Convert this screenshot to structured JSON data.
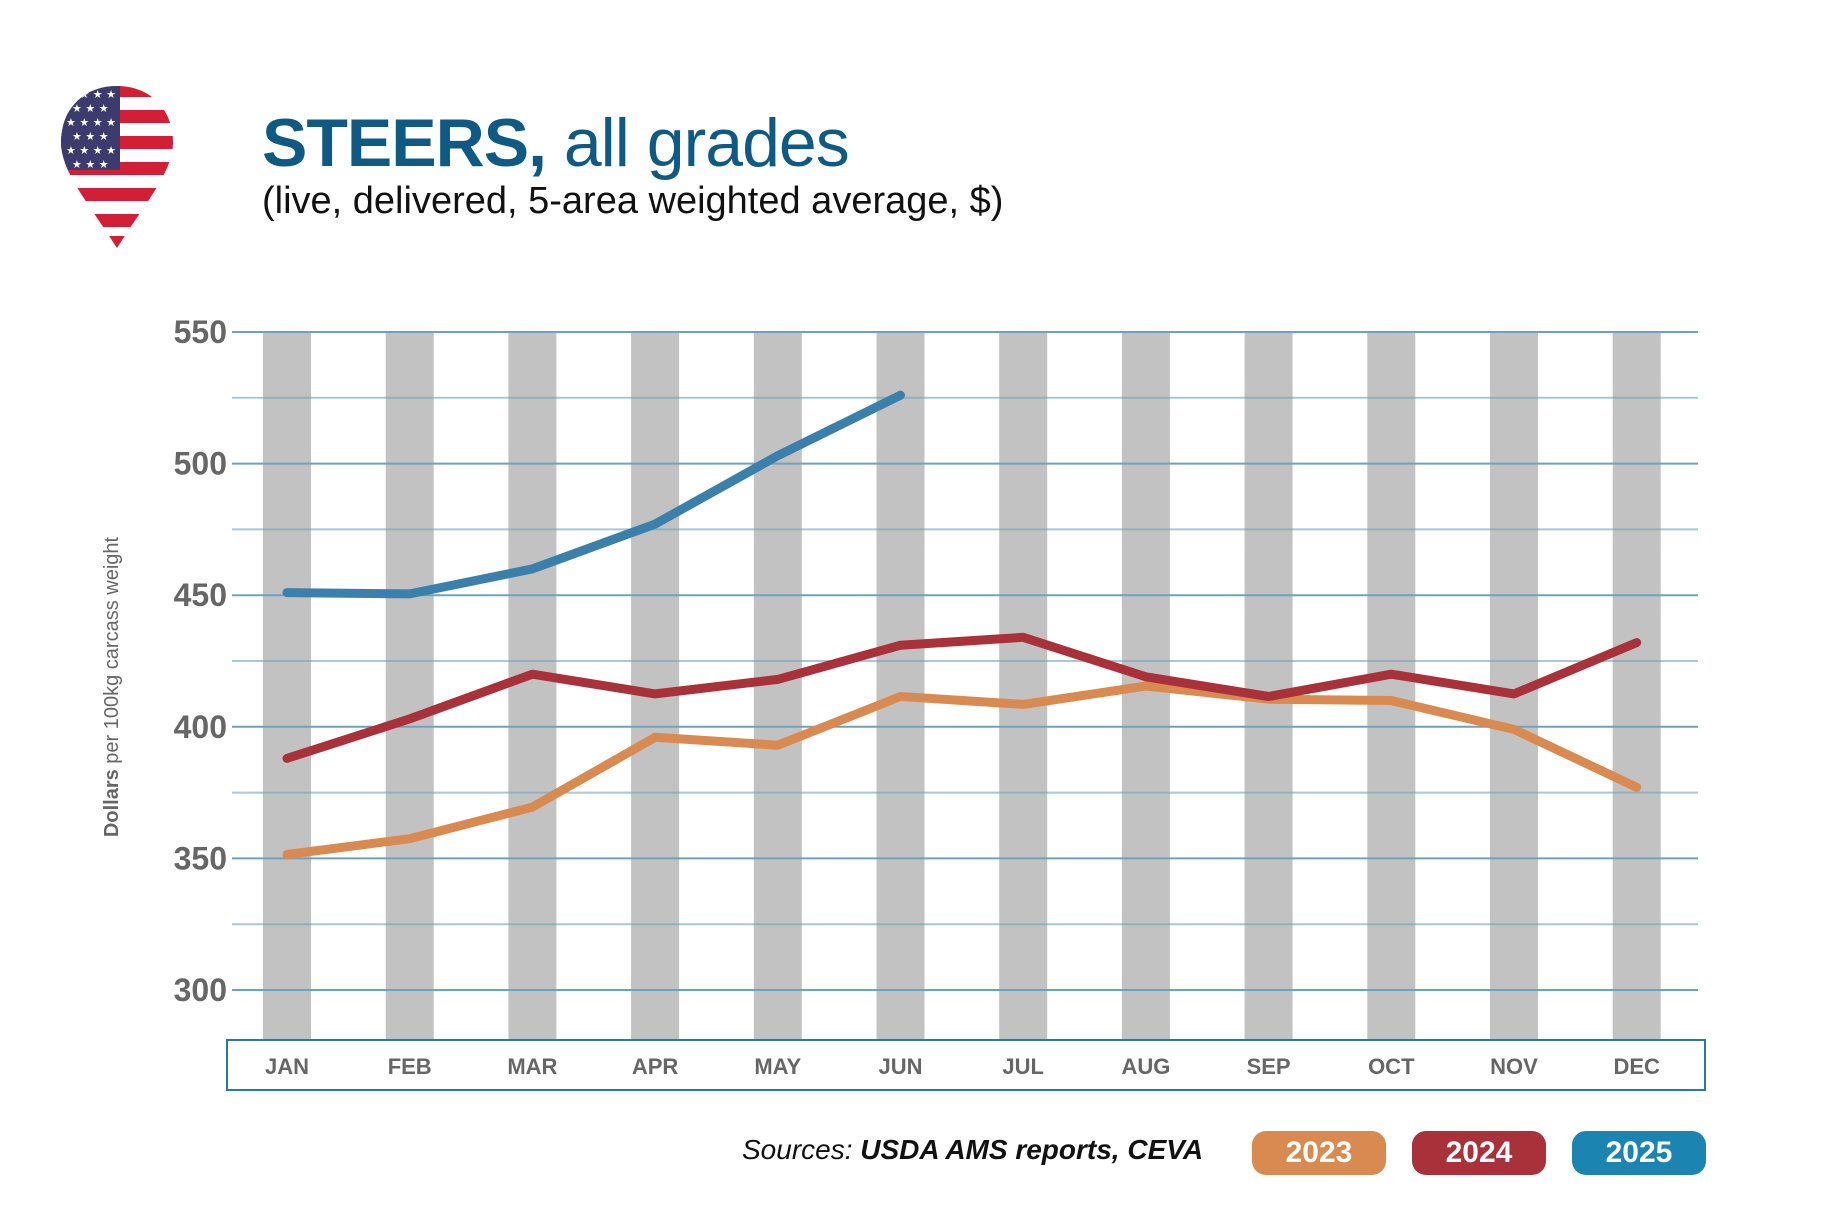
{
  "header": {
    "title_bold": "STEERS,",
    "title_rest": " all grades",
    "subtitle": "(live, delivered, 5-area weighted average, $)",
    "flag_icon": "us-flag-pin-icon"
  },
  "footer": {
    "source_prefix": "Sources: ",
    "source_text": "USDA AMS reports, CEVA"
  },
  "colors": {
    "2023": "#d98a50",
    "2024": "#a9313a",
    "2025": "#3b80ab",
    "title": "#0f5a85",
    "grid": "#6fa3bd",
    "column": "#c2c2c2",
    "axis_box": "#2a7a9a",
    "tick_text": "#666666"
  },
  "chart_data": {
    "type": "line",
    "title": "STEERS, all grades",
    "subtitle": "(live, delivered, 5-area weighted average, $)",
    "xlabel": "",
    "ylabel_bold": "Dollars",
    "ylabel_rest": " per 100kg carcass weight",
    "ylabel": "Dollars per 100kg carcass weight",
    "categories": [
      "JAN",
      "FEB",
      "MAR",
      "APR",
      "MAY",
      "JUN",
      "JUL",
      "AUG",
      "SEP",
      "OCT",
      "NOV",
      "DEC"
    ],
    "ylim": [
      300,
      550
    ],
    "yticks": [
      300,
      350,
      400,
      450,
      500,
      550
    ],
    "minor_grid_step": 25,
    "grid": true,
    "legend_position": "bottom-right",
    "series": [
      {
        "name": "2023",
        "values": [
          351.5,
          357.5,
          369.5,
          396,
          393,
          411.5,
          408.5,
          415.5,
          410.5,
          410,
          399,
          377
        ]
      },
      {
        "name": "2024",
        "values": [
          388,
          403,
          420,
          412.5,
          418,
          431,
          434,
          419,
          411.5,
          420,
          412.5,
          432
        ]
      },
      {
        "name": "2025",
        "values": [
          451,
          450.5,
          460,
          477,
          503,
          526,
          null,
          null,
          null,
          null,
          null,
          null
        ]
      }
    ]
  }
}
